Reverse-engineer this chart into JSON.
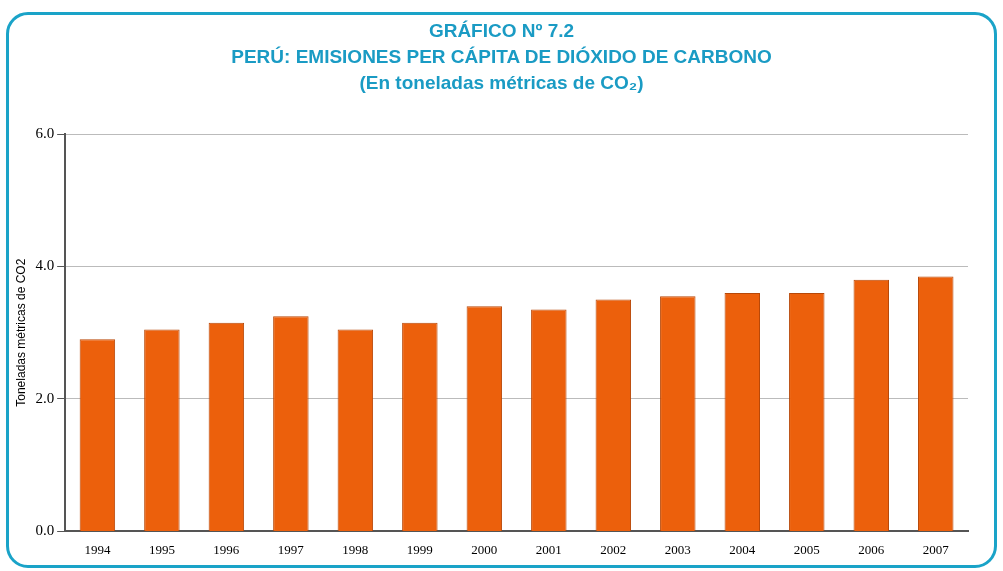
{
  "chart_data": {
    "type": "bar",
    "title": "GRÁFICO Nº 7.2",
    "subtitle": "PERÚ: EMISIONES PER CÁPITA DE DIÓXIDO DE CARBONO\n(En toneladas métricas de CO₂)",
    "ylabel": "Toneladas métricas de CO2",
    "categories": [
      "1994",
      "1995",
      "1996",
      "1997",
      "1998",
      "1999",
      "2000",
      "2001",
      "2002",
      "2003",
      "2004",
      "2005",
      "2006",
      "2007"
    ],
    "values": [
      2.9,
      3.05,
      3.15,
      3.25,
      3.05,
      3.15,
      3.4,
      3.35,
      3.5,
      3.55,
      3.6,
      3.6,
      3.8,
      3.85
    ],
    "color": "#ec600c",
    "ylim": [
      0,
      6
    ],
    "yticks": [
      {
        "value": 0,
        "label": "0.0"
      },
      {
        "value": 2,
        "label": "2.0"
      },
      {
        "value": 4,
        "label": "4.0"
      },
      {
        "value": 6,
        "label": "6.0"
      }
    ],
    "grid": "y"
  }
}
